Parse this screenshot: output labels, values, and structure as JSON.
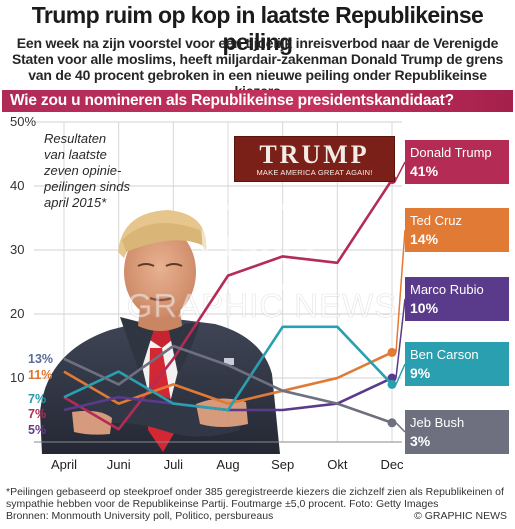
{
  "header": {
    "title": "Trump ruim op kop in laatste Republikeinse peiling",
    "subtitle": "Een week na zijn voorstel voor een tijdelijk  inreisverbod naar de Verenigde Staten voor alle moslims, heeft miljardair-zakenman Donald Trump de grens van de 40 procent gebroken in een nieuwe peiling onder Republikeinse kiezers"
  },
  "question": "Wie zou u nomineren als Republikeinse presidentskandidaat?",
  "annotation": "Resultaten van laatste zeven opinie-peilingen sinds april 2015*",
  "logo": {
    "main": "TRUMP",
    "sub": "MAKE AMERICA GREAT AGAIN!"
  },
  "watermark": "GRAPHIC NEWS",
  "footnote": "*Peilingen gebaseerd op steekproef onder 385 geregistreerde kiezers die zichzelf zien als Republikeinen of sympathie hebben voor de Republikeinse Partij. Foutmarge ±5,0 procent. Foto: Getty Images",
  "sources": "Bronnen: Monmouth University poll, Politico, persbureaus",
  "copyright": "© GRAPHIC NEWS",
  "chart_data": {
    "type": "line",
    "x": [
      "April",
      "Juni",
      "Juli",
      "Aug",
      "Sep",
      "Okt",
      "Dec"
    ],
    "ylim": [
      0,
      50
    ],
    "yticks": [
      0,
      10,
      20,
      30,
      40,
      50
    ],
    "ytick_labels": [
      "",
      "10",
      "20",
      "30",
      "40",
      "50%"
    ],
    "grid": true,
    "start_labels": [
      {
        "text": "13%",
        "color": "#5a6a9a"
      },
      {
        "text": "11%",
        "color": "#e0742c"
      },
      {
        "text": "7%",
        "color": "#2a9aa8"
      },
      {
        "text": "7%",
        "color": "#b42c55"
      },
      {
        "text": "5%",
        "color": "#6a3a8a"
      }
    ],
    "series": [
      {
        "name": "Donald Trump",
        "value_label": "41%",
        "color": "#b42c55",
        "values": [
          7,
          2,
          13,
          26,
          29,
          28,
          41
        ]
      },
      {
        "name": "Ted Cruz",
        "value_label": "14%",
        "color": "#e07a35",
        "values": [
          11,
          6,
          9,
          6,
          8,
          10,
          14
        ]
      },
      {
        "name": "Marco Rubio",
        "value_label": "10%",
        "color": "#5a3a8a",
        "values": [
          5,
          7,
          6,
          5,
          5,
          6,
          10
        ]
      },
      {
        "name": "Ben Carson",
        "value_label": "9%",
        "color": "#2a9fb0",
        "values": [
          7,
          11,
          6,
          5,
          18,
          18,
          9
        ]
      },
      {
        "name": "Jeb Bush",
        "value_label": "3%",
        "color": "#6e7080",
        "values": [
          13,
          9,
          15,
          12,
          8,
          6,
          3
        ]
      }
    ]
  }
}
